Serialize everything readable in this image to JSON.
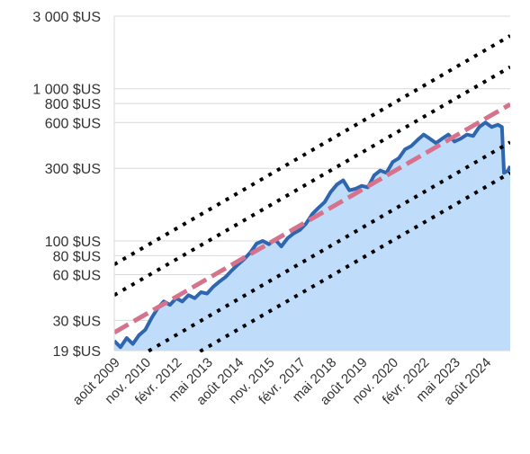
{
  "chart_data": {
    "type": "area",
    "title": "",
    "xlabel": "",
    "ylabel": "",
    "y_scale": "log",
    "ylim": [
      19,
      3000
    ],
    "xlim": [
      "2009-05",
      "2025-05"
    ],
    "grid": "horizontal",
    "y_ticks": [
      {
        "value": 3000,
        "label": "3 000 $US"
      },
      {
        "value": 1000,
        "label": "1 000 $US"
      },
      {
        "value": 800,
        "label": "800 $US"
      },
      {
        "value": 600,
        "label": "600 $US"
      },
      {
        "value": 300,
        "label": "300 $US"
      },
      {
        "value": 100,
        "label": "100 $US"
      },
      {
        "value": 80,
        "label": "80 $US"
      },
      {
        "value": 60,
        "label": "60 $US"
      },
      {
        "value": 30,
        "label": "30 $US"
      },
      {
        "value": 19,
        "label": "19 $US"
      }
    ],
    "x_ticks": [
      {
        "date": "2009-08",
        "label": "août 2009"
      },
      {
        "date": "2010-11",
        "label": "nov. 2010"
      },
      {
        "date": "2012-02",
        "label": "févr. 2012"
      },
      {
        "date": "2013-05",
        "label": "mai 2013"
      },
      {
        "date": "2014-08",
        "label": "août 2014"
      },
      {
        "date": "2015-11",
        "label": "nov. 2015"
      },
      {
        "date": "2017-02",
        "label": "févr. 2017"
      },
      {
        "date": "2018-05",
        "label": "mai 2018"
      },
      {
        "date": "2019-08",
        "label": "août 2019"
      },
      {
        "date": "2020-11",
        "label": "nov. 2020"
      },
      {
        "date": "2022-02",
        "label": "févr. 2022"
      },
      {
        "date": "2023-05",
        "label": "mai 2023"
      },
      {
        "date": "2024-08",
        "label": "août 2024"
      }
    ],
    "series": [
      {
        "style": "area",
        "color": "#2e66b0",
        "fill": "#bfdcfb",
        "points": [
          {
            "x": "2009-05",
            "y": 22
          },
          {
            "x": "2009-08",
            "y": 20
          },
          {
            "x": "2009-11",
            "y": 23
          },
          {
            "x": "2010-02",
            "y": 21
          },
          {
            "x": "2010-05",
            "y": 24
          },
          {
            "x": "2010-08",
            "y": 26
          },
          {
            "x": "2010-11",
            "y": 31
          },
          {
            "x": "2011-02",
            "y": 36
          },
          {
            "x": "2011-05",
            "y": 40
          },
          {
            "x": "2011-08",
            "y": 38
          },
          {
            "x": "2011-11",
            "y": 42
          },
          {
            "x": "2012-02",
            "y": 40
          },
          {
            "x": "2012-05",
            "y": 44
          },
          {
            "x": "2012-08",
            "y": 42
          },
          {
            "x": "2012-11",
            "y": 46
          },
          {
            "x": "2013-02",
            "y": 45
          },
          {
            "x": "2013-05",
            "y": 50
          },
          {
            "x": "2013-08",
            "y": 54
          },
          {
            "x": "2013-11",
            "y": 58
          },
          {
            "x": "2014-02",
            "y": 64
          },
          {
            "x": "2014-05",
            "y": 70
          },
          {
            "x": "2014-08",
            "y": 76
          },
          {
            "x": "2014-11",
            "y": 84
          },
          {
            "x": "2015-02",
            "y": 96
          },
          {
            "x": "2015-05",
            "y": 100
          },
          {
            "x": "2015-08",
            "y": 95
          },
          {
            "x": "2015-11",
            "y": 102
          },
          {
            "x": "2016-02",
            "y": 92
          },
          {
            "x": "2016-05",
            "y": 104
          },
          {
            "x": "2016-08",
            "y": 112
          },
          {
            "x": "2016-11",
            "y": 118
          },
          {
            "x": "2017-02",
            "y": 130
          },
          {
            "x": "2017-05",
            "y": 150
          },
          {
            "x": "2017-08",
            "y": 165
          },
          {
            "x": "2017-11",
            "y": 180
          },
          {
            "x": "2018-02",
            "y": 210
          },
          {
            "x": "2018-05",
            "y": 235
          },
          {
            "x": "2018-08",
            "y": 250
          },
          {
            "x": "2018-11",
            "y": 215
          },
          {
            "x": "2019-02",
            "y": 220
          },
          {
            "x": "2019-05",
            "y": 230
          },
          {
            "x": "2019-08",
            "y": 225
          },
          {
            "x": "2019-11",
            "y": 270
          },
          {
            "x": "2020-02",
            "y": 290
          },
          {
            "x": "2020-05",
            "y": 280
          },
          {
            "x": "2020-08",
            "y": 330
          },
          {
            "x": "2020-11",
            "y": 350
          },
          {
            "x": "2021-02",
            "y": 400
          },
          {
            "x": "2021-05",
            "y": 420
          },
          {
            "x": "2021-08",
            "y": 460
          },
          {
            "x": "2021-11",
            "y": 500
          },
          {
            "x": "2022-02",
            "y": 470
          },
          {
            "x": "2022-05",
            "y": 440
          },
          {
            "x": "2022-08",
            "y": 470
          },
          {
            "x": "2022-11",
            "y": 500
          },
          {
            "x": "2023-02",
            "y": 450
          },
          {
            "x": "2023-05",
            "y": 470
          },
          {
            "x": "2023-08",
            "y": 500
          },
          {
            "x": "2023-11",
            "y": 490
          },
          {
            "x": "2024-02",
            "y": 560
          },
          {
            "x": "2024-05",
            "y": 600
          },
          {
            "x": "2024-08",
            "y": 560
          },
          {
            "x": "2024-11",
            "y": 580
          },
          {
            "x": "2025-01",
            "y": 560
          },
          {
            "x": "2025-02",
            "y": 280
          },
          {
            "x": "2025-04",
            "y": 290
          },
          {
            "x": "2025-05",
            "y": 310
          }
        ]
      }
    ],
    "trend_lines": [
      {
        "style": "dashed",
        "color": "#d6728c",
        "from": {
          "x": "2009-05",
          "y": 25
        },
        "to": {
          "x": "2025-05",
          "y": 790
        }
      },
      {
        "style": "dotted",
        "color": "#000000",
        "from": {
          "x": "2009-05",
          "y": 70
        },
        "to": {
          "x": "2025-05",
          "y": 2230
        }
      },
      {
        "style": "dotted",
        "color": "#000000",
        "from": {
          "x": "2009-05",
          "y": 44
        },
        "to": {
          "x": "2025-05",
          "y": 1390
        }
      },
      {
        "style": "dotted",
        "color": "#000000",
        "from": {
          "x": "2009-05",
          "y": 14
        },
        "to": {
          "x": "2025-05",
          "y": 445
        }
      },
      {
        "style": "dotted",
        "color": "#000000",
        "from": {
          "x": "2009-05",
          "y": 8.9
        },
        "to": {
          "x": "2025-05",
          "y": 280
        }
      }
    ]
  }
}
